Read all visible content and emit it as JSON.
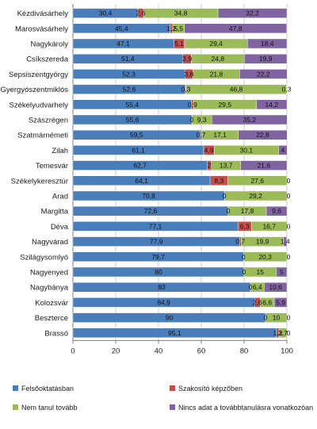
{
  "colors": {
    "Felsőoktatásban": "#4a7ebb",
    "Szakosító képzőben": "#c0504d",
    "Nem tanul tovább": "#9bbb59",
    "Nincs adat a továbbtanulásra vonatkozóan": "#8064a2",
    "grid": "#bfbfbf",
    "axis": "#7f7f7f"
  },
  "chart_data": {
    "type": "bar",
    "orientation": "horizontal",
    "stacked": true,
    "xlim": [
      0,
      100
    ],
    "xticks": [
      0,
      20,
      40,
      60,
      80,
      100
    ],
    "grid": true,
    "legend_position": "bottom",
    "title": "",
    "xlabel": "",
    "ylabel": "",
    "categories": [
      "Kézdivásárhely",
      "Marosvásárhely",
      "Nagykároly",
      "Csíkszereda",
      "Sepsiszentgyörgy",
      "Gyergyószentmiklós",
      "Székelyudvarhely",
      "Szászrégen",
      "Szatmárnémeti",
      "Zilah",
      "Temesvár",
      "Székelykeresztúr",
      "Arad",
      "Margitta",
      "Déva",
      "Nagyvárad",
      "Szilágysomlyó",
      "Nagyenyed",
      "Nagybánya",
      "Kolozsvár",
      "Beszterce",
      "Brassó"
    ],
    "series": [
      {
        "name": "Felsőoktatásban",
        "values": [
          30.4,
          45.4,
          47.1,
          51.4,
          52.3,
          52.6,
          55.4,
          55.6,
          59.5,
          61.1,
          62.7,
          64.1,
          70.8,
          72.6,
          77.1,
          77.9,
          79.7,
          80,
          83,
          84.9,
          90,
          95.1
        ]
      },
      {
        "name": "Szakosító képzőben",
        "values": [
          2.6,
          1.2,
          5.1,
          3.9,
          3.8,
          0.3,
          0.9,
          0,
          0.7,
          4.9,
          2,
          8.3,
          0,
          0,
          6.3,
          0.7,
          0,
          0,
          0,
          2.6,
          0,
          1.2
        ]
      },
      {
        "name": "Nem tanul tovább",
        "values": [
          34.8,
          5.5,
          29.4,
          24.8,
          21.8,
          46.8,
          29.5,
          9.3,
          17.1,
          30.1,
          13.7,
          27.6,
          29.2,
          17.8,
          16.7,
          19.9,
          20.3,
          15,
          6.4,
          6.6,
          10,
          3.7
        ]
      },
      {
        "name": "Nincs adat a továbbtanulásra vonatkozóan",
        "values": [
          32.2,
          47.8,
          18.4,
          19.9,
          22.2,
          0.3,
          14.2,
          35.2,
          22.8,
          4,
          21.6,
          0,
          0,
          9.6,
          0,
          1.4,
          0,
          5,
          10.6,
          5.9,
          0,
          0
        ]
      }
    ],
    "labels": [
      [
        "30,4",
        "2,6",
        "34,8",
        "32,2"
      ],
      [
        "45,4",
        "1,2",
        "5,5",
        "47,8"
      ],
      [
        "47,1",
        "5,1",
        "29,4",
        "18,4"
      ],
      [
        "51,4",
        "3,9",
        "24,8",
        "19,9"
      ],
      [
        "52,3",
        "3,8",
        "21,8",
        "22,2"
      ],
      [
        "52,6",
        "0,3",
        "46,8",
        "0,3"
      ],
      [
        "55,4",
        "0,9",
        "29,5",
        "14,2"
      ],
      [
        "55,6",
        "0",
        "9,3",
        "35,2"
      ],
      [
        "59,5",
        "0,7",
        "17,1",
        "22,8"
      ],
      [
        "61,1",
        "4,9",
        "30,1",
        "4"
      ],
      [
        "62,7",
        "2",
        "13,7",
        "21,6"
      ],
      [
        "64,1",
        "8,3",
        "27,6",
        "0"
      ],
      [
        "70,8",
        "0",
        "29,2",
        "0"
      ],
      [
        "72,6",
        "0",
        "17,8",
        "9,6"
      ],
      [
        "77,1",
        "6,3",
        "16,7",
        "0"
      ],
      [
        "77,9",
        "0,7",
        "19,9",
        "1,4"
      ],
      [
        "79,7",
        "0",
        "20,3",
        "0"
      ],
      [
        "80",
        "0",
        "15",
        "5"
      ],
      [
        "83",
        "0",
        "6,4",
        "10,6"
      ],
      [
        "84,9",
        "2,6",
        "6,6",
        "5,9"
      ],
      [
        "90",
        "0",
        "10",
        "0"
      ],
      [
        "95,1",
        "1,2",
        "3,7",
        "0"
      ]
    ]
  }
}
